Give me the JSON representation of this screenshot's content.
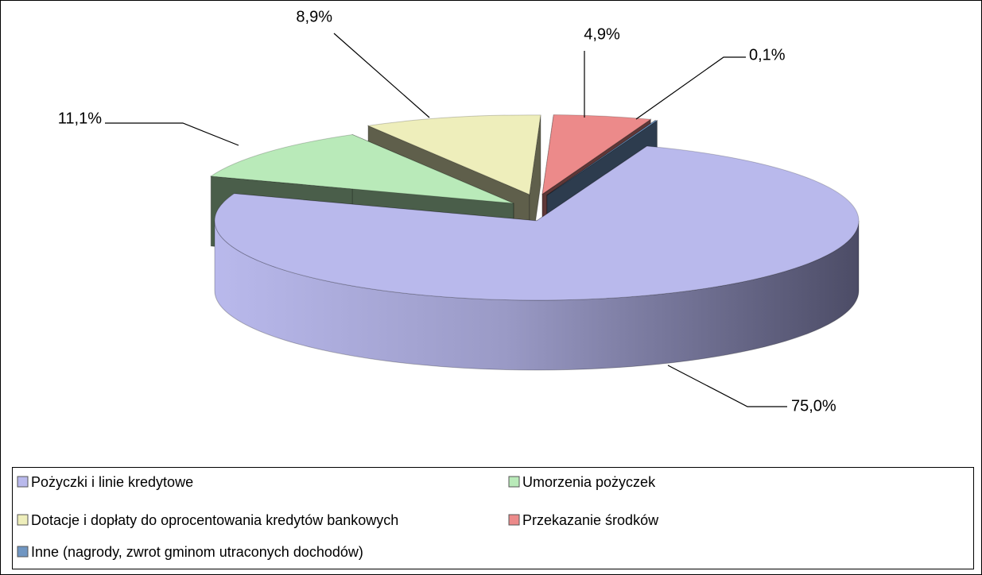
{
  "chart_data": {
    "type": "pie3d",
    "categories": [
      "Pożyczki i linie kredytowe",
      "Umorzenia pożyczek",
      "Dotacje i dopłaty do oprocentowania kredytów bankowych",
      "Przekazanie środków",
      "Inne (nagrody, zwrot gminom utraconych dochodów)"
    ],
    "values": [
      75.0,
      11.1,
      8.9,
      4.9,
      0.1
    ],
    "value_labels": [
      "75,0%",
      "11,1%",
      "8,9%",
      "4,9%",
      "0,1%"
    ],
    "colors": [
      "#b9b9ec",
      "#b9eab9",
      "#eeeebb",
      "#ec8a8a",
      "#7096c2"
    ],
    "legend": "bottom"
  }
}
